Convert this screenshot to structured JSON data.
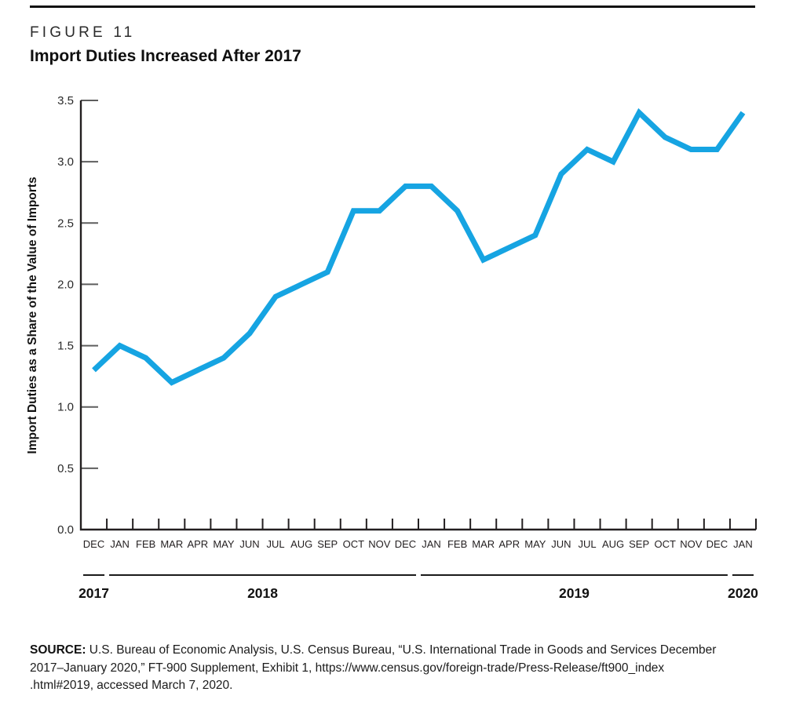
{
  "figure": {
    "label": "FIGURE 11",
    "title": "Import Duties Increased After 2017"
  },
  "chart_data": {
    "type": "line",
    "x": [
      "DEC",
      "JAN",
      "FEB",
      "MAR",
      "APR",
      "MAY",
      "JUN",
      "JUL",
      "AUG",
      "SEP",
      "OCT",
      "NOV",
      "DEC",
      "JAN",
      "FEB",
      "MAR",
      "APR",
      "MAY",
      "JUN",
      "JUL",
      "AUG",
      "SEP",
      "OCT",
      "NOV",
      "DEC",
      "JAN"
    ],
    "values": [
      1.3,
      1.5,
      1.4,
      1.2,
      1.3,
      1.4,
      1.6,
      1.9,
      2.0,
      2.1,
      2.6,
      2.6,
      2.8,
      2.8,
      2.6,
      2.2,
      2.3,
      2.4,
      2.9,
      3.1,
      3.0,
      3.4,
      3.2,
      3.1,
      3.1,
      3.4
    ],
    "ylabel": "Import Duties as a Share of the Value of Imports",
    "xlabel": "",
    "title": "Import Duties Increased After 2017",
    "ylim": [
      0,
      3.5
    ],
    "ytick_labels": [
      "0.0",
      "0.5",
      "1.0",
      "1.5",
      "2.0",
      "2.5",
      "3.0",
      "3.5"
    ],
    "grid": "off",
    "legend": "none",
    "years": [
      {
        "label": "2017",
        "start": 0,
        "end": 1
      },
      {
        "label": "2018",
        "start": 1,
        "end": 13
      },
      {
        "label": "2019",
        "start": 13,
        "end": 25
      },
      {
        "label": "2020",
        "start": 25,
        "end": 26
      }
    ],
    "colors": {
      "line": "#16A4E2",
      "axis": "#231F20",
      "ytick": "#5E5E5E",
      "text": "#2a2a2a",
      "year_rule": "#1a1a1a"
    }
  },
  "source": {
    "label": "SOURCE:",
    "lines": [
      "U.S. Bureau of Economic Analysis, U.S. Census Bureau, “U.S. International Trade in Goods and Services December",
      "2017–January 2020,” FT-900 Supplement, Exhibit 1, https://www.census.gov/foreign-trade/Press-Release/ft900_index",
      ".html#2019, accessed March 7, 2020."
    ]
  }
}
